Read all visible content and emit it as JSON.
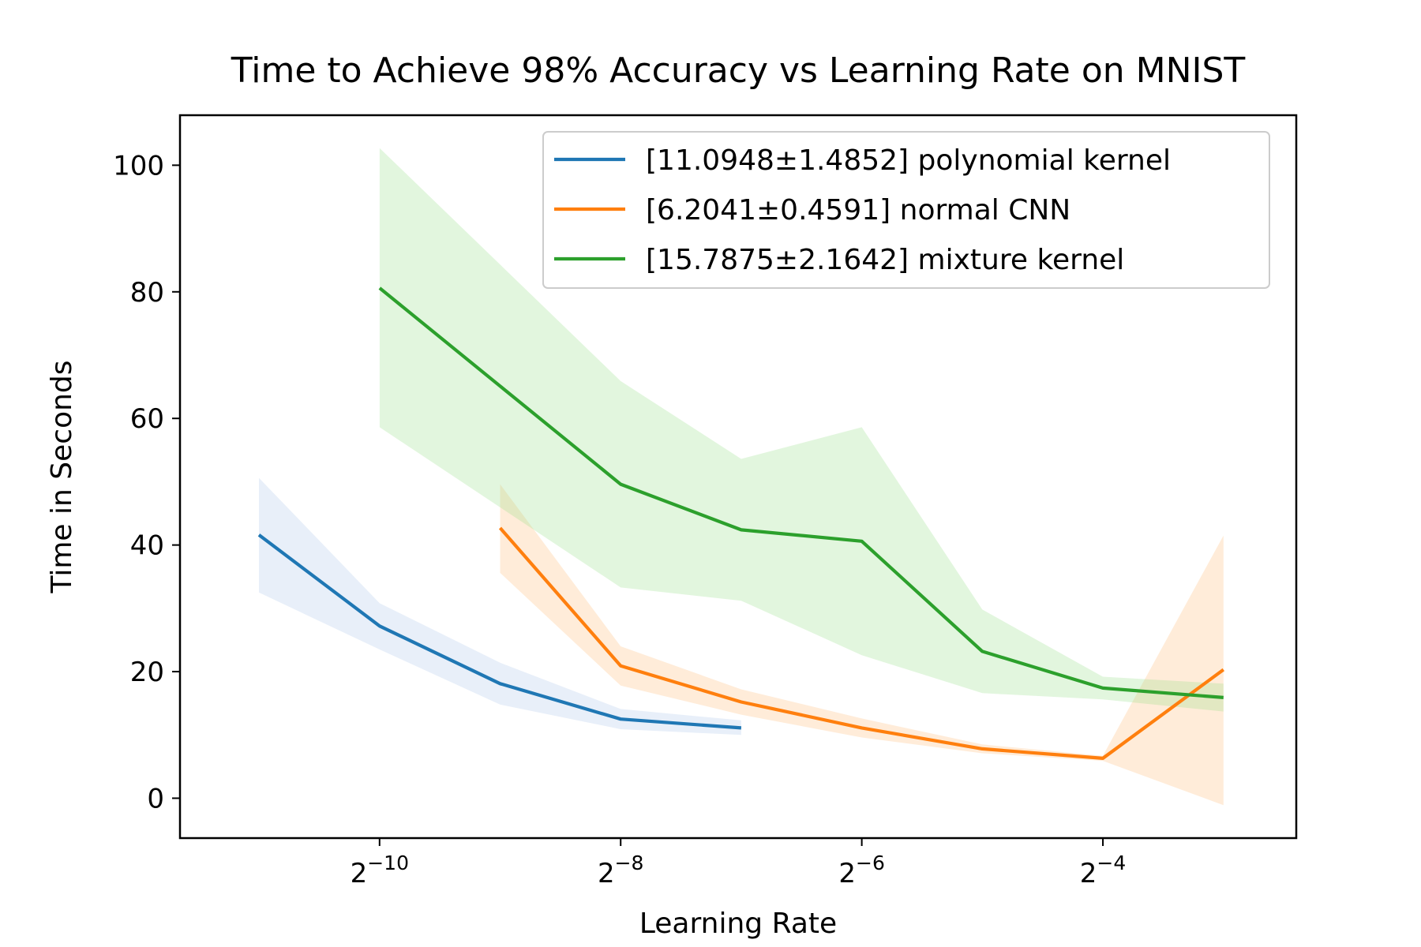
{
  "chart_data": {
    "type": "line",
    "title": "Time to Achieve 98% Accuracy vs Learning Rate on MNIST",
    "xlabel": "Learning Rate",
    "ylabel": "Time in Seconds",
    "xscale": "log2",
    "x_ticks": [
      {
        "base": "2",
        "exp": "−10",
        "value": 0.0009765625
      },
      {
        "base": "2",
        "exp": "−8",
        "value": 0.00390625
      },
      {
        "base": "2",
        "exp": "−6",
        "value": 0.015625
      },
      {
        "base": "2",
        "exp": "−4",
        "value": 0.0625
      }
    ],
    "y_ticks": [
      0,
      20,
      40,
      60,
      80,
      100
    ],
    "xlim": [
      0.00031,
      0.19
    ],
    "ylim": [
      -6.3,
      107.9
    ],
    "grid": false,
    "legend_position": "top-right",
    "series": [
      {
        "name": "[11.0948±1.4852] polynomial kernel",
        "color": "#1f77b4",
        "band_color": "#aec7e8",
        "x": [
          0.000488,
          0.000977,
          0.001953,
          0.003906,
          0.007813
        ],
        "y": [
          41.6,
          27.2,
          18.1,
          12.5,
          11.1
        ],
        "lower": [
          32.5,
          23.5,
          14.8,
          10.9,
          10.0
        ],
        "upper": [
          50.6,
          30.8,
          21.4,
          14.1,
          12.3
        ]
      },
      {
        "name": "[6.2041±0.4591] normal CNN",
        "color": "#ff7f0e",
        "band_color": "#ffbb78",
        "x": [
          0.001953,
          0.003906,
          0.007813,
          0.015625,
          0.03125,
          0.0625,
          0.125
        ],
        "y": [
          42.7,
          20.9,
          15.2,
          11.1,
          7.8,
          6.3,
          20.3
        ],
        "lower": [
          35.6,
          17.8,
          13.2,
          9.6,
          7.1,
          5.9,
          -1.1
        ],
        "upper": [
          49.6,
          24.0,
          17.2,
          12.6,
          8.5,
          6.7,
          41.5
        ]
      },
      {
        "name": "[15.7875±2.1642] mixture kernel",
        "color": "#2ca02c",
        "band_color": "#98df8a",
        "x": [
          0.000977,
          0.003906,
          0.007813,
          0.015625,
          0.03125,
          0.0625,
          0.125
        ],
        "y": [
          80.6,
          49.6,
          42.4,
          40.6,
          23.2,
          17.4,
          15.9
        ],
        "lower": [
          58.6,
          33.3,
          31.2,
          22.6,
          16.6,
          15.6,
          13.7
        ],
        "upper": [
          102.7,
          65.9,
          53.6,
          58.6,
          29.8,
          19.2,
          18.1
        ]
      }
    ]
  }
}
